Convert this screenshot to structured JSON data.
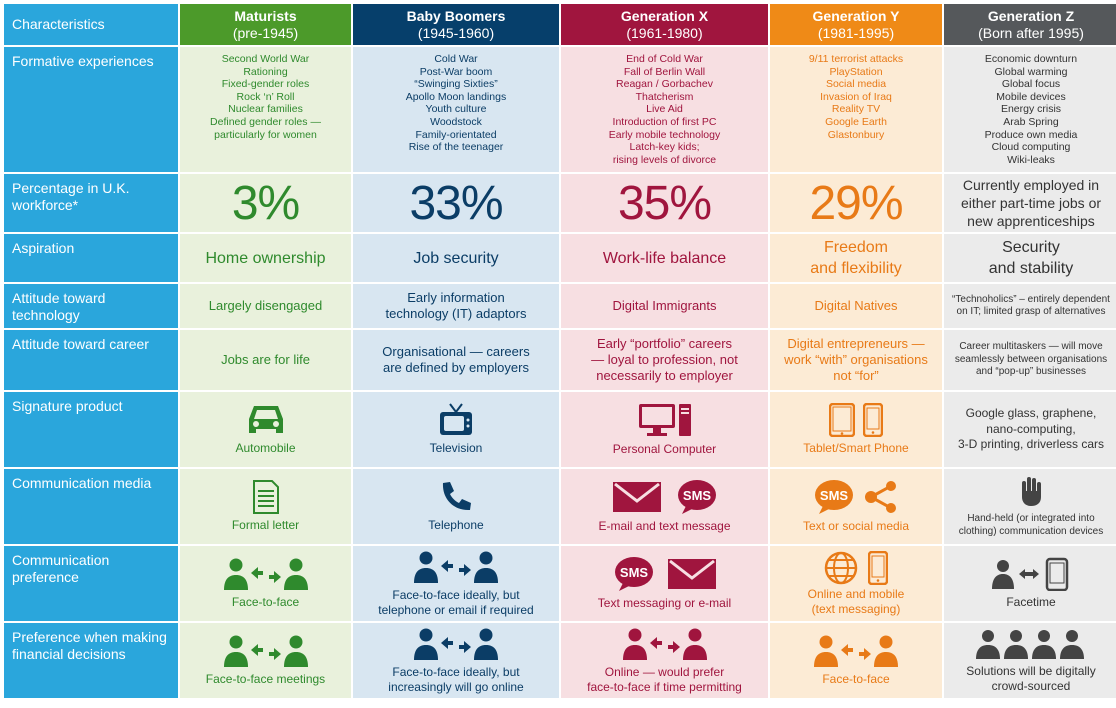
{
  "colors": {
    "row_label_bg": "#2aa6dc",
    "maturists": "#4c9a2a",
    "baby_boomers": "#063f6b",
    "generation_x": "#a0153e",
    "generation_y": "#ef8a17",
    "generation_z": "#55585b"
  },
  "header": {
    "characteristics": "Characteristics",
    "generations": [
      {
        "name": "Maturists",
        "years": "(pre-1945)"
      },
      {
        "name": "Baby Boomers",
        "years": "(1945-1960)"
      },
      {
        "name": "Generation X",
        "years": "(1961-1980)"
      },
      {
        "name": "Generation Y",
        "years": "(1981-1995)"
      },
      {
        "name": "Generation Z",
        "years": "(Born after 1995)"
      }
    ]
  },
  "rows": {
    "formative": {
      "label": "Formative experiences",
      "values": [
        [
          "Second World War",
          "Rationing",
          "Fixed-gender roles",
          "Rock ‘n’ Roll",
          "Nuclear families",
          "Defined gender roles —",
          "particularly for women"
        ],
        [
          "Cold War",
          "Post-War boom",
          "“Swinging Sixties”",
          "Apollo Moon landings",
          "Youth culture",
          "Woodstock",
          "Family-orientated",
          "Rise of the teenager"
        ],
        [
          "End of Cold War",
          "Fall of Berlin Wall",
          "Reagan / Gorbachev",
          "Thatcherism",
          "Live Aid",
          "Introduction of first PC",
          "Early mobile technology",
          "Latch-key kids;",
          "rising levels of divorce"
        ],
        [
          "9/11 terrorist attacks",
          "PlayStation",
          "Social media",
          "Invasion of Iraq",
          "Reality TV",
          "Google Earth",
          "Glastonbury"
        ],
        [
          "Economic downturn",
          "Global warming",
          "Global focus",
          "Mobile devices",
          "Energy crisis",
          "Arab Spring",
          "Produce own media",
          "Cloud computing",
          "Wiki-leaks"
        ]
      ]
    },
    "workforce": {
      "label": "Percentage in U.K. workforce*",
      "values": [
        "3%",
        "33%",
        "35%",
        "29%"
      ],
      "genz": [
        "Currently employed in",
        "either part-time jobs or",
        "new apprenticeships"
      ]
    },
    "aspiration": {
      "label": "Aspiration",
      "values": [
        [
          "Home ownership"
        ],
        [
          "Job security"
        ],
        [
          "Work-life balance"
        ],
        [
          "Freedom",
          "and flexibility"
        ],
        [
          "Security",
          "and stability"
        ]
      ]
    },
    "technology": {
      "label": "Attitude toward technology",
      "values": [
        [
          "Largely disengaged"
        ],
        [
          "Early information",
          "technology (IT) adaptors"
        ],
        [
          "Digital Immigrants"
        ],
        [
          "Digital Natives"
        ],
        [
          "“Technoholics” – entirely dependent",
          "on IT; limited grasp of alternatives"
        ]
      ]
    },
    "career": {
      "label": "Attitude toward career",
      "values": [
        [
          "Jobs are for life"
        ],
        [
          "Organisational — careers",
          "are defined by employers"
        ],
        [
          "Early “portfolio” careers",
          "— loyal to profession, not",
          "necessarily to employer"
        ],
        [
          "Digital entrepreneurs —",
          "work “with” organisations",
          "not “for”"
        ],
        [
          "Career multitaskers — will move",
          "seamlessly between organisations",
          "and “pop-up” businesses"
        ]
      ]
    },
    "product": {
      "label": "Signature product",
      "values": [
        "Automobile",
        "Television",
        "Personal Computer",
        "Tablet/Smart Phone"
      ],
      "genz": [
        "Google glass, graphene,",
        "nano-computing,",
        "3-D printing, driverless cars"
      ]
    },
    "media": {
      "label": "Communication media",
      "values": [
        [
          "Formal letter"
        ],
        [
          "Telephone"
        ],
        [
          "E-mail and text message"
        ],
        [
          "Text or social media"
        ],
        [
          "Hand-held (or integrated into",
          "clothing) communication devices"
        ]
      ],
      "sms": "SMS"
    },
    "preference": {
      "label": "Communication preference",
      "values": [
        [
          "Face-to-face"
        ],
        [
          "Face-to-face ideally, but",
          "telephone or email if required"
        ],
        [
          "Text messaging or e-mail"
        ],
        [
          "Online and mobile",
          "(text messaging)"
        ],
        [
          "Facetime"
        ]
      ]
    },
    "financial": {
      "label": "Preference when making financial decisions",
      "values": [
        [
          "Face-to-face meetings"
        ],
        [
          "Face-to-face ideally, but",
          "increasingly will go online"
        ],
        [
          "Online — would prefer",
          "face-to-face if time permitting"
        ],
        [
          "Face-to-face"
        ],
        [
          "Solutions will be digitally",
          "crowd-sourced"
        ]
      ]
    }
  }
}
